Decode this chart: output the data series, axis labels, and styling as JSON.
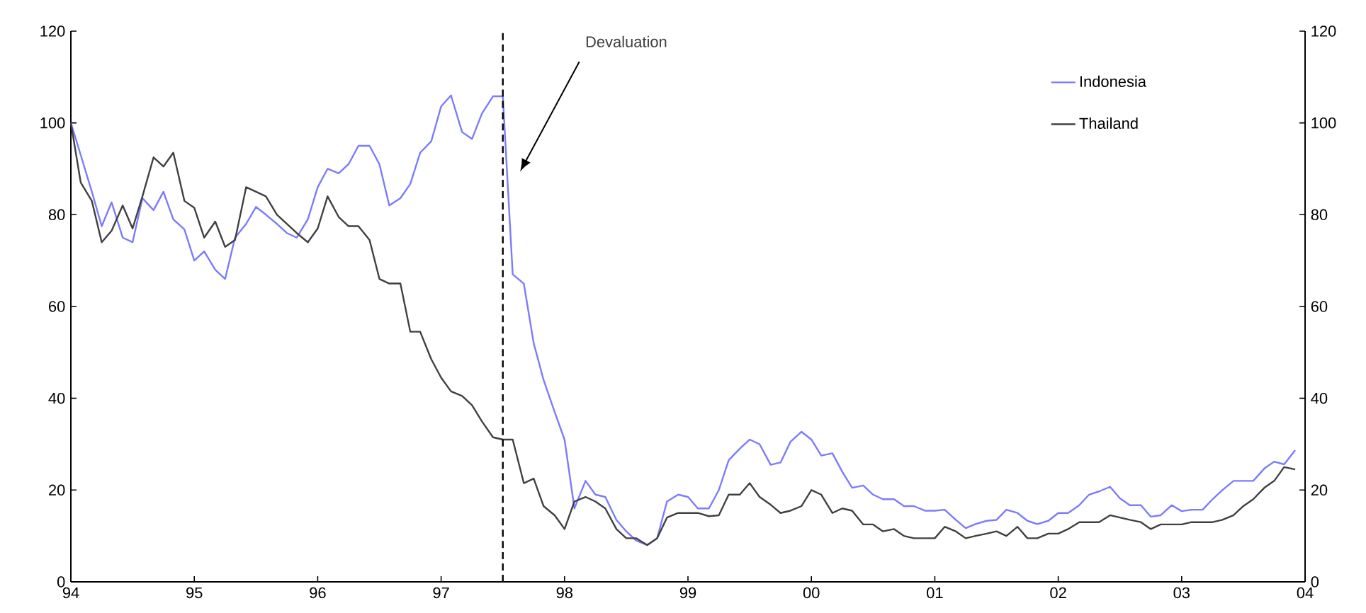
{
  "chart_data": {
    "type": "line",
    "x": [
      "1994-01",
      "1994-02",
      "1994-03",
      "1994-04",
      "1994-05",
      "1994-06",
      "1994-07",
      "1994-08",
      "1994-09",
      "1994-10",
      "1994-11",
      "1994-12",
      "1995-01",
      "1995-02",
      "1995-03",
      "1995-04",
      "1995-05",
      "1995-06",
      "1995-07",
      "1995-08",
      "1995-09",
      "1995-10",
      "1995-11",
      "1995-12",
      "1996-01",
      "1996-02",
      "1996-03",
      "1996-04",
      "1996-05",
      "1996-06",
      "1996-07",
      "1996-08",
      "1996-09",
      "1996-10",
      "1996-11",
      "1996-12",
      "1997-01",
      "1997-02",
      "1997-03",
      "1997-04",
      "1997-05",
      "1997-06",
      "1997-07",
      "1997-08",
      "1997-09",
      "1997-10",
      "1997-11",
      "1997-12",
      "1998-01",
      "1998-02",
      "1998-03",
      "1998-04",
      "1998-05",
      "1998-06",
      "1998-07",
      "1998-08",
      "1998-09",
      "1998-10",
      "1998-11",
      "1998-12",
      "1999-01",
      "1999-02",
      "1999-03",
      "1999-04",
      "1999-05",
      "1999-06",
      "1999-07",
      "1999-08",
      "1999-09",
      "1999-10",
      "1999-11",
      "1999-12",
      "2000-01",
      "2000-02",
      "2000-03",
      "2000-04",
      "2000-05",
      "2000-06",
      "2000-07",
      "2000-08",
      "2000-09",
      "2000-10",
      "2000-11",
      "2000-12",
      "2001-01",
      "2001-02",
      "2001-03",
      "2001-04",
      "2001-05",
      "2001-06",
      "2001-07",
      "2001-08",
      "2001-09",
      "2001-10",
      "2001-11",
      "2001-12",
      "2002-01",
      "2002-02",
      "2002-03",
      "2002-04",
      "2002-05",
      "2002-06",
      "2002-07",
      "2002-08",
      "2002-09",
      "2002-10",
      "2002-11",
      "2002-12",
      "2003-01",
      "2003-02",
      "2003-03",
      "2003-04",
      "2003-05",
      "2003-06",
      "2003-07",
      "2003-08",
      "2003-09",
      "2003-10",
      "2003-11",
      "2003-12"
    ],
    "series": [
      {
        "name": "Indonesia",
        "color": "#7b7bff",
        "values": [
          100,
          93,
          85,
          77.5,
          82.7,
          75,
          74,
          83.6,
          81,
          85,
          79,
          76.8,
          70,
          72,
          68,
          66,
          75,
          78,
          81.7,
          80,
          78,
          76,
          75,
          79,
          86,
          90,
          89,
          91,
          95,
          95,
          91,
          82,
          83.6,
          86.7,
          93.5,
          96,
          103.6,
          106,
          98,
          96.5,
          102,
          105.8,
          105.8,
          67,
          65,
          52,
          44,
          37,
          31,
          16,
          22,
          19,
          18.5,
          13.5,
          11,
          9,
          8,
          9.5,
          17.5,
          19,
          18.5,
          16,
          16,
          20,
          26.5,
          29,
          31,
          30,
          25.5,
          26,
          30.5,
          32.7,
          31,
          27.5,
          28,
          24,
          20.5,
          21,
          19,
          18,
          18,
          16.5,
          16.5,
          15.5,
          15.5,
          15.7,
          13.5,
          11.7,
          12.6,
          13.3,
          13.5,
          15.7,
          15,
          13.3,
          12.6,
          13.3,
          15,
          15,
          16.7,
          19,
          19.7,
          20.7,
          18.2,
          16.7,
          16.7,
          14.2,
          14.5,
          16.7,
          15.4,
          15.7,
          15.7,
          18,
          20,
          22,
          22,
          22,
          24.7,
          26.2,
          25.6,
          28.7
        ]
      },
      {
        "name": "Thailand",
        "color": "#404040",
        "values": [
          100,
          87,
          83,
          74,
          76.5,
          82,
          77,
          84,
          92.5,
          90.5,
          93.5,
          83,
          81.5,
          75,
          78.5,
          73,
          74.5,
          86,
          85,
          84,
          80,
          78,
          76,
          74,
          77,
          84,
          79.5,
          77.5,
          77.5,
          74.5,
          66,
          65,
          65,
          54.5,
          54.5,
          48.5,
          44.5,
          41.5,
          40.5,
          38.5,
          35,
          31.5,
          31,
          31,
          21.5,
          22.5,
          16.5,
          14.5,
          11.5,
          17.5,
          18.5,
          17.5,
          16,
          11.5,
          9.5,
          9.5,
          8,
          9.5,
          14,
          15,
          15,
          15,
          14.3,
          14.5,
          19,
          19,
          21.5,
          18.5,
          16.8,
          15,
          15.5,
          16.5,
          20,
          19,
          15,
          16,
          15.5,
          12.5,
          12.5,
          11,
          11.5,
          10,
          9.5,
          9.5,
          9.5,
          12,
          11,
          9.5,
          10,
          10.5,
          11,
          10,
          12,
          9.5,
          9.5,
          10.5,
          10.5,
          11.5,
          13,
          13,
          13,
          14.5,
          14,
          13.5,
          13,
          11.5,
          12.5,
          12.5,
          12.5,
          13,
          13,
          13,
          13.5,
          14.5,
          16.5,
          18,
          20.5,
          22,
          25,
          24.5
        ]
      }
    ],
    "xlim": [
      "1994",
      "2004"
    ],
    "xticks": [
      {
        "value": "1994",
        "label": "94"
      },
      {
        "value": "1995",
        "label": "95"
      },
      {
        "value": "1996",
        "label": "96"
      },
      {
        "value": "1997",
        "label": "97"
      },
      {
        "value": "1998",
        "label": "98"
      },
      {
        "value": "1999",
        "label": "99"
      },
      {
        "value": "2000",
        "label": "00"
      },
      {
        "value": "2001",
        "label": "01"
      },
      {
        "value": "2002",
        "label": "02"
      },
      {
        "value": "2003",
        "label": "03"
      },
      {
        "value": "2004",
        "label": "04"
      }
    ],
    "ylim": [
      0,
      120
    ],
    "yticks": [
      0,
      20,
      40,
      60,
      80,
      100,
      120
    ],
    "y2lim": [
      0,
      120
    ],
    "y2ticks": [
      0,
      20,
      40,
      60,
      80,
      100,
      120
    ],
    "ref_lines": [
      {
        "axis": "x",
        "value": "1997-07",
        "color": "#000000",
        "line_style": "dashed"
      }
    ],
    "annotations": [
      "Devaluation"
    ],
    "legend": "top right",
    "grid": false,
    "line_style": "solid",
    "marker": "none"
  }
}
